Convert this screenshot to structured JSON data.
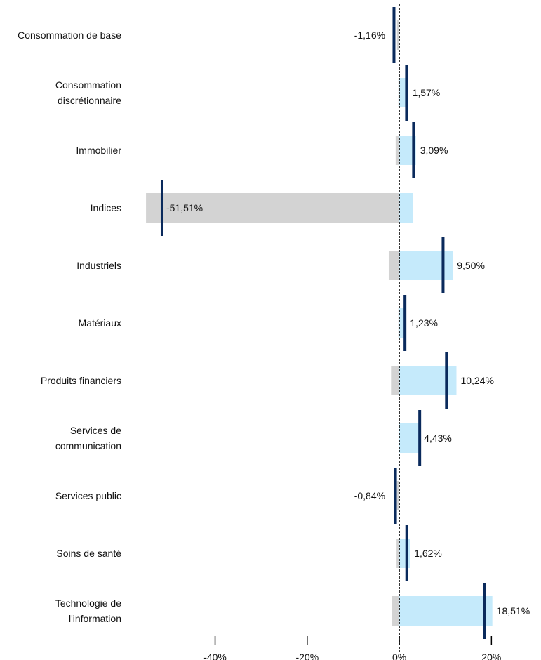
{
  "chart_data": {
    "type": "bar",
    "orientation": "horizontal",
    "categories": [
      [
        "Consommation de base"
      ],
      [
        "Consommation",
        "discrétionnaire"
      ],
      [
        "Immobilier"
      ],
      [
        "Indices"
      ],
      [
        "Industriels"
      ],
      [
        "Matériaux"
      ],
      [
        "Produits financiers"
      ],
      [
        "Services de",
        "communication"
      ],
      [
        "Services public"
      ],
      [
        "Soins de santé"
      ],
      [
        "Technologie de",
        "l'information"
      ]
    ],
    "series": [
      {
        "values": [
          -0.5,
          -0.2,
          -0.8,
          -55.0,
          -2.3,
          -0.2,
          -1.8,
          0.0,
          -0.5,
          -0.6,
          -1.6
        ]
      },
      {
        "values": [
          0.0,
          1.9,
          3.6,
          2.9,
          11.6,
          1.4,
          12.4,
          4.4,
          0.0,
          2.3,
          20.2
        ]
      }
    ],
    "markers": [
      -1.16,
      1.57,
      3.09,
      -51.51,
      9.5,
      1.23,
      10.24,
      4.43,
      -0.84,
      1.62,
      18.51
    ],
    "value_labels": [
      "-1,16%",
      "1,57%",
      "3,09%",
      "-51,51%",
      "9,50%",
      "1,23%",
      "10,24%",
      "4,43%",
      "-0,84%",
      "1,62%",
      "18,51%"
    ],
    "x_ticks": [
      -40,
      -20,
      0,
      20
    ],
    "x_tick_labels": [
      "-40%",
      "-20%",
      "0%",
      "20%"
    ],
    "xlim": [
      -86.7,
      30.0
    ],
    "colors": {
      "negative_bar": "#d3d3d3",
      "positive_bar": "#c5eafb",
      "marker": "#0a2a5c",
      "zero_line": "#000000"
    },
    "grid": false,
    "legend": "none"
  }
}
